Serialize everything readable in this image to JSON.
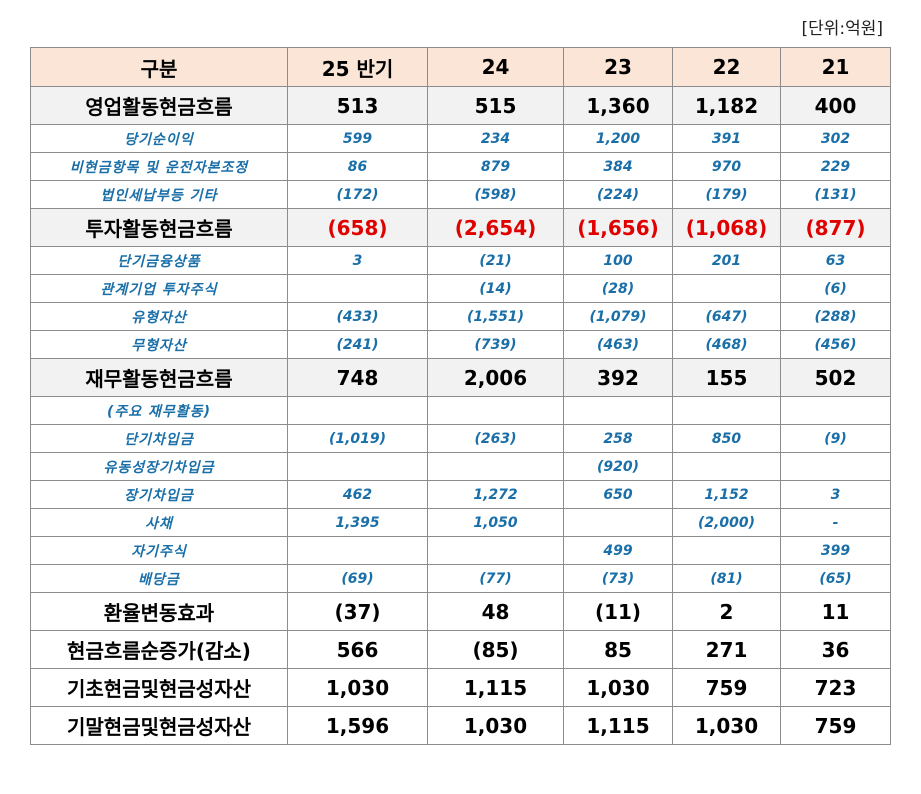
{
  "unit_label": "[단위:억원]",
  "table": {
    "header": [
      "구분",
      "25 반기",
      "24",
      "23",
      "22",
      "21"
    ],
    "rows": [
      {
        "kind": "major",
        "shade": true,
        "neg": false,
        "label": "영업활동현금흐름",
        "values": [
          "513",
          "515",
          "1,360",
          "1,182",
          "400"
        ]
      },
      {
        "kind": "sub",
        "label": "당기순이익",
        "values": [
          "599",
          "234",
          "1,200",
          "391",
          "302"
        ]
      },
      {
        "kind": "sub",
        "label": "비현금항목 및 운전자본조정",
        "values": [
          "86",
          "879",
          "384",
          "970",
          "229"
        ]
      },
      {
        "kind": "sub",
        "label": "법인세납부등 기타",
        "values": [
          "(172)",
          "(598)",
          "(224)",
          "(179)",
          "(131)"
        ]
      },
      {
        "kind": "major",
        "shade": true,
        "neg": true,
        "label": "투자활동현금흐름",
        "values": [
          "(658)",
          "(2,654)",
          "(1,656)",
          "(1,068)",
          "(877)"
        ]
      },
      {
        "kind": "sub",
        "label": "단기금융상품",
        "values": [
          "3",
          "(21)",
          "100",
          "201",
          "63"
        ]
      },
      {
        "kind": "sub",
        "label": "관계기업 투자주식",
        "values": [
          "",
          "(14)",
          "(28)",
          "",
          "(6)"
        ]
      },
      {
        "kind": "sub",
        "label": "유형자산",
        "values": [
          "(433)",
          "(1,551)",
          "(1,079)",
          "(647)",
          "(288)"
        ]
      },
      {
        "kind": "sub",
        "label": "무형자산",
        "values": [
          "(241)",
          "(739)",
          "(463)",
          "(468)",
          "(456)"
        ]
      },
      {
        "kind": "major",
        "shade": true,
        "neg": false,
        "label": "재무활동현금흐름",
        "values": [
          "748",
          "2,006",
          "392",
          "155",
          "502"
        ]
      },
      {
        "kind": "sub",
        "label": "(주요 재무활동)",
        "values": [
          "",
          "",
          "",
          "",
          ""
        ]
      },
      {
        "kind": "sub",
        "label": "단기차입금",
        "values": [
          "(1,019)",
          "(263)",
          "258",
          "850",
          "(9)"
        ]
      },
      {
        "kind": "sub",
        "label": "유동성장기차입금",
        "values": [
          "",
          "",
          "(920)",
          "",
          ""
        ]
      },
      {
        "kind": "sub",
        "label": "장기차입금",
        "values": [
          "462",
          "1,272",
          "650",
          "1,152",
          "3"
        ]
      },
      {
        "kind": "sub",
        "label": "사채",
        "values": [
          "1,395",
          "1,050",
          "",
          "(2,000)",
          "-"
        ]
      },
      {
        "kind": "sub",
        "label": "자기주식",
        "values": [
          "",
          "",
          "499",
          "",
          "399"
        ]
      },
      {
        "kind": "sub",
        "label": "배당금",
        "values": [
          "(69)",
          "(77)",
          "(73)",
          "(81)",
          "(65)"
        ]
      },
      {
        "kind": "major",
        "shade": false,
        "neg": false,
        "label": "환율변동효과",
        "values": [
          "(37)",
          "48",
          "(11)",
          "2",
          "11"
        ]
      },
      {
        "kind": "major",
        "shade": false,
        "neg": false,
        "label": "현금흐름순증가(감소)",
        "values": [
          "566",
          "(85)",
          "85",
          "271",
          "36"
        ]
      },
      {
        "kind": "major",
        "shade": false,
        "neg": false,
        "label": "기초현금및현금성자산",
        "values": [
          "1,030",
          "1,115",
          "1,030",
          "759",
          "723"
        ]
      },
      {
        "kind": "major",
        "shade": false,
        "neg": false,
        "label": "기말현금및현금성자산",
        "values": [
          "1,596",
          "1,030",
          "1,115",
          "1,030",
          "759"
        ]
      }
    ]
  }
}
